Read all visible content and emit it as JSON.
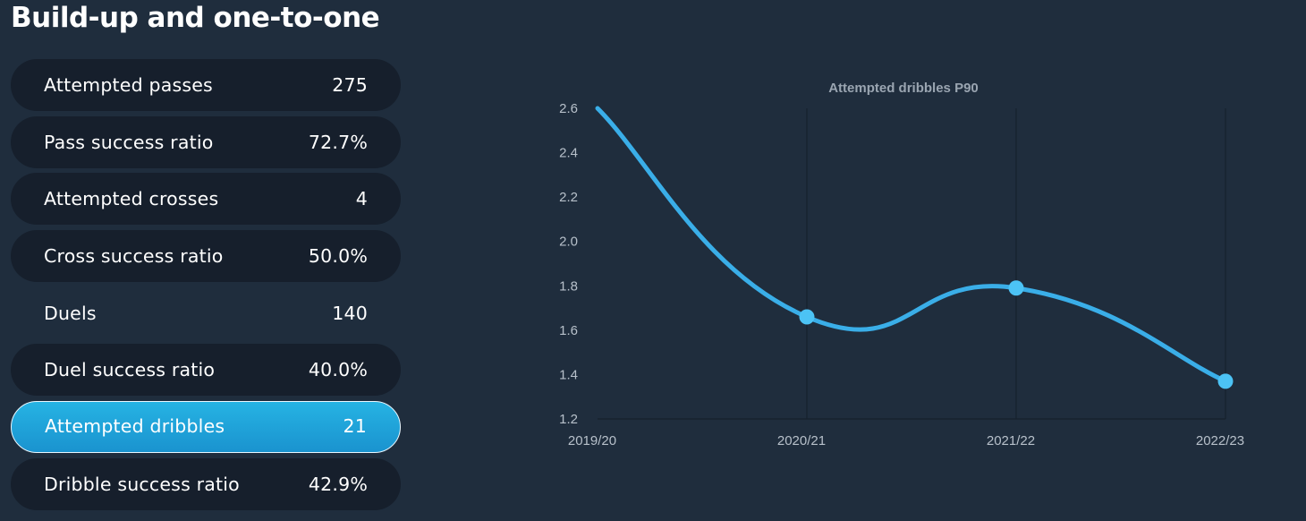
{
  "section": {
    "title": "Build-up and one-to-one"
  },
  "stats": [
    {
      "label": "Attempted passes",
      "value": "275",
      "style": "pill"
    },
    {
      "label": "Pass success ratio",
      "value": "72.7%",
      "style": "pill"
    },
    {
      "label": "Attempted crosses",
      "value": "4",
      "style": "pill"
    },
    {
      "label": "Cross success ratio",
      "value": "50.0%",
      "style": "pill"
    },
    {
      "label": "Duels",
      "value": "140",
      "style": "plain"
    },
    {
      "label": "Duel success ratio",
      "value": "40.0%",
      "style": "pill"
    },
    {
      "label": "Attempted dribbles",
      "value": "21",
      "style": "active"
    },
    {
      "label": "Dribble success ratio",
      "value": "42.9%",
      "style": "pill"
    }
  ],
  "colors": {
    "background": "#1f2d3d",
    "pill": "#161f2c",
    "active": "#1fa2da",
    "line": "#3aaee8",
    "point": "#4cc3f5"
  },
  "chart_data": {
    "type": "line",
    "title": "Attempted dribbles P90",
    "categories": [
      "2019/20",
      "2020/21",
      "2021/22",
      "2022/23"
    ],
    "series": [
      {
        "values": [
          2.6,
          1.66,
          1.79,
          1.37
        ]
      }
    ],
    "ylim": [
      1.2,
      2.6
    ],
    "yticks": [
      1.2,
      1.4,
      1.6,
      1.8,
      2.0,
      2.2,
      2.4,
      2.6
    ],
    "xlabel": "",
    "ylabel": "",
    "grid": "vertical",
    "smooth": true,
    "first_point_marker": false
  }
}
